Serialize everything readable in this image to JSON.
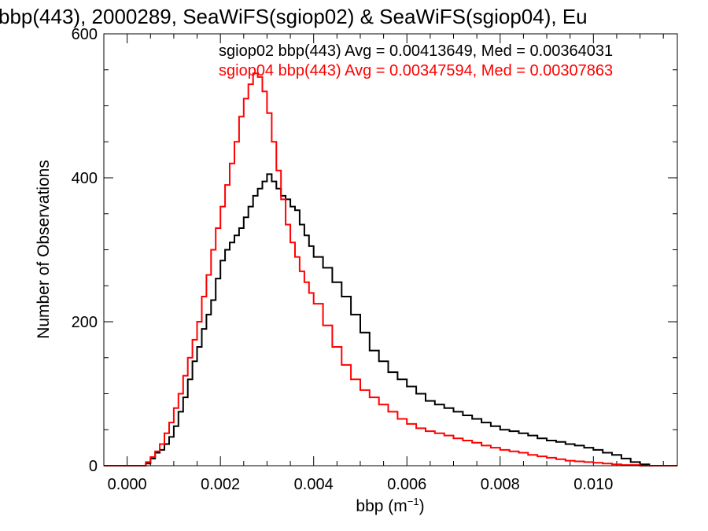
{
  "chart_data": {
    "type": "line",
    "title": "bbp(443), 2000289, SeaWiFS(sgiop02) & SeaWiFS(sgiop04), Eu",
    "xlabel": "bbp (m",
    "xlabel_sup": "−1",
    "xlabel_end": ")",
    "ylabel": "Number of Observations",
    "xlim": [
      -0.0005,
      0.0118
    ],
    "ylim": [
      0,
      600
    ],
    "x_ticks": [
      0.0,
      0.002,
      0.004,
      0.006,
      0.008,
      0.01
    ],
    "x_tick_labels": [
      "0.000",
      "0.002",
      "0.004",
      "0.006",
      "0.008",
      "0.010"
    ],
    "y_ticks": [
      0,
      200,
      400,
      600
    ],
    "y_tick_labels": [
      "0",
      "200",
      "400",
      "600"
    ],
    "grid": false,
    "legend_placement": "top-right",
    "annotations": [
      {
        "text": "sgiop02 bbp(443) Avg = 0.00413649, Med = 0.00364031",
        "color": "#000000"
      },
      {
        "text": "sgiop04 bbp(443) Avg = 0.00347594, Med = 0.00307863",
        "color": "#ff0000"
      }
    ],
    "series": [
      {
        "color": "#000000",
        "x": [
          -0.0005,
          0.0,
          0.0002,
          0.0004,
          0.0005,
          0.0006,
          0.0007,
          0.0008,
          0.0009,
          0.001,
          0.0011,
          0.0012,
          0.0013,
          0.0014,
          0.0015,
          0.0016,
          0.0017,
          0.0018,
          0.0019,
          0.002,
          0.0021,
          0.0022,
          0.0023,
          0.0024,
          0.0025,
          0.0026,
          0.0027,
          0.0028,
          0.0029,
          0.003,
          0.0031,
          0.0032,
          0.0033,
          0.0034,
          0.0035,
          0.0036,
          0.0037,
          0.0038,
          0.0039,
          0.004,
          0.0042,
          0.0044,
          0.0046,
          0.0048,
          0.005,
          0.0052,
          0.0054,
          0.0056,
          0.0058,
          0.006,
          0.0062,
          0.0064,
          0.0066,
          0.0068,
          0.007,
          0.0072,
          0.0074,
          0.0076,
          0.0078,
          0.008,
          0.0082,
          0.0084,
          0.0086,
          0.0088,
          0.009,
          0.0092,
          0.0094,
          0.0096,
          0.0098,
          0.01,
          0.0102,
          0.0104,
          0.0106,
          0.0108,
          0.011,
          0.0112,
          0.0114,
          0.0118
        ],
        "y": [
          0,
          0,
          0,
          3,
          10,
          18,
          22,
          30,
          40,
          55,
          75,
          95,
          120,
          145,
          165,
          190,
          210,
          230,
          260,
          285,
          300,
          310,
          320,
          330,
          345,
          360,
          375,
          385,
          395,
          405,
          395,
          385,
          375,
          370,
          360,
          355,
          335,
          320,
          305,
          290,
          275,
          255,
          235,
          210,
          185,
          160,
          145,
          130,
          120,
          110,
          100,
          90,
          85,
          80,
          75,
          70,
          65,
          60,
          55,
          50,
          48,
          45,
          42,
          38,
          35,
          33,
          30,
          28,
          25,
          22,
          18,
          15,
          10,
          5,
          2,
          0,
          0,
          0
        ]
      },
      {
        "color": "#ff0000",
        "x": [
          -0.0005,
          0.0,
          0.0002,
          0.0004,
          0.0005,
          0.0006,
          0.0007,
          0.0008,
          0.0009,
          0.001,
          0.0011,
          0.0012,
          0.0013,
          0.0014,
          0.0015,
          0.0016,
          0.0017,
          0.0018,
          0.0019,
          0.002,
          0.0021,
          0.0022,
          0.0023,
          0.0024,
          0.0025,
          0.0026,
          0.0027,
          0.0028,
          0.0029,
          0.003,
          0.0031,
          0.0032,
          0.0033,
          0.0034,
          0.0035,
          0.0036,
          0.0037,
          0.0038,
          0.0039,
          0.004,
          0.0042,
          0.0044,
          0.0046,
          0.0048,
          0.005,
          0.0052,
          0.0054,
          0.0056,
          0.0058,
          0.006,
          0.0062,
          0.0064,
          0.0066,
          0.0068,
          0.007,
          0.0072,
          0.0074,
          0.0076,
          0.0078,
          0.008,
          0.0082,
          0.0084,
          0.0086,
          0.0088,
          0.009,
          0.0092,
          0.0094,
          0.0096,
          0.0098,
          0.01,
          0.0102,
          0.0104,
          0.0106,
          0.0108,
          0.011,
          0.0112,
          0.0114,
          0.0118
        ],
        "y": [
          0,
          0,
          0,
          5,
          12,
          20,
          30,
          45,
          60,
          80,
          100,
          125,
          150,
          175,
          200,
          235,
          265,
          300,
          330,
          360,
          390,
          420,
          450,
          485,
          510,
          530,
          545,
          540,
          520,
          490,
          450,
          410,
          370,
          335,
          310,
          290,
          270,
          255,
          240,
          225,
          195,
          165,
          140,
          120,
          105,
          95,
          85,
          75,
          65,
          58,
          52,
          48,
          45,
          42,
          38,
          35,
          32,
          28,
          25,
          22,
          20,
          18,
          15,
          13,
          11,
          9,
          7,
          6,
          5,
          4,
          3,
          2,
          1,
          1,
          0,
          0,
          0,
          0
        ]
      }
    ]
  }
}
